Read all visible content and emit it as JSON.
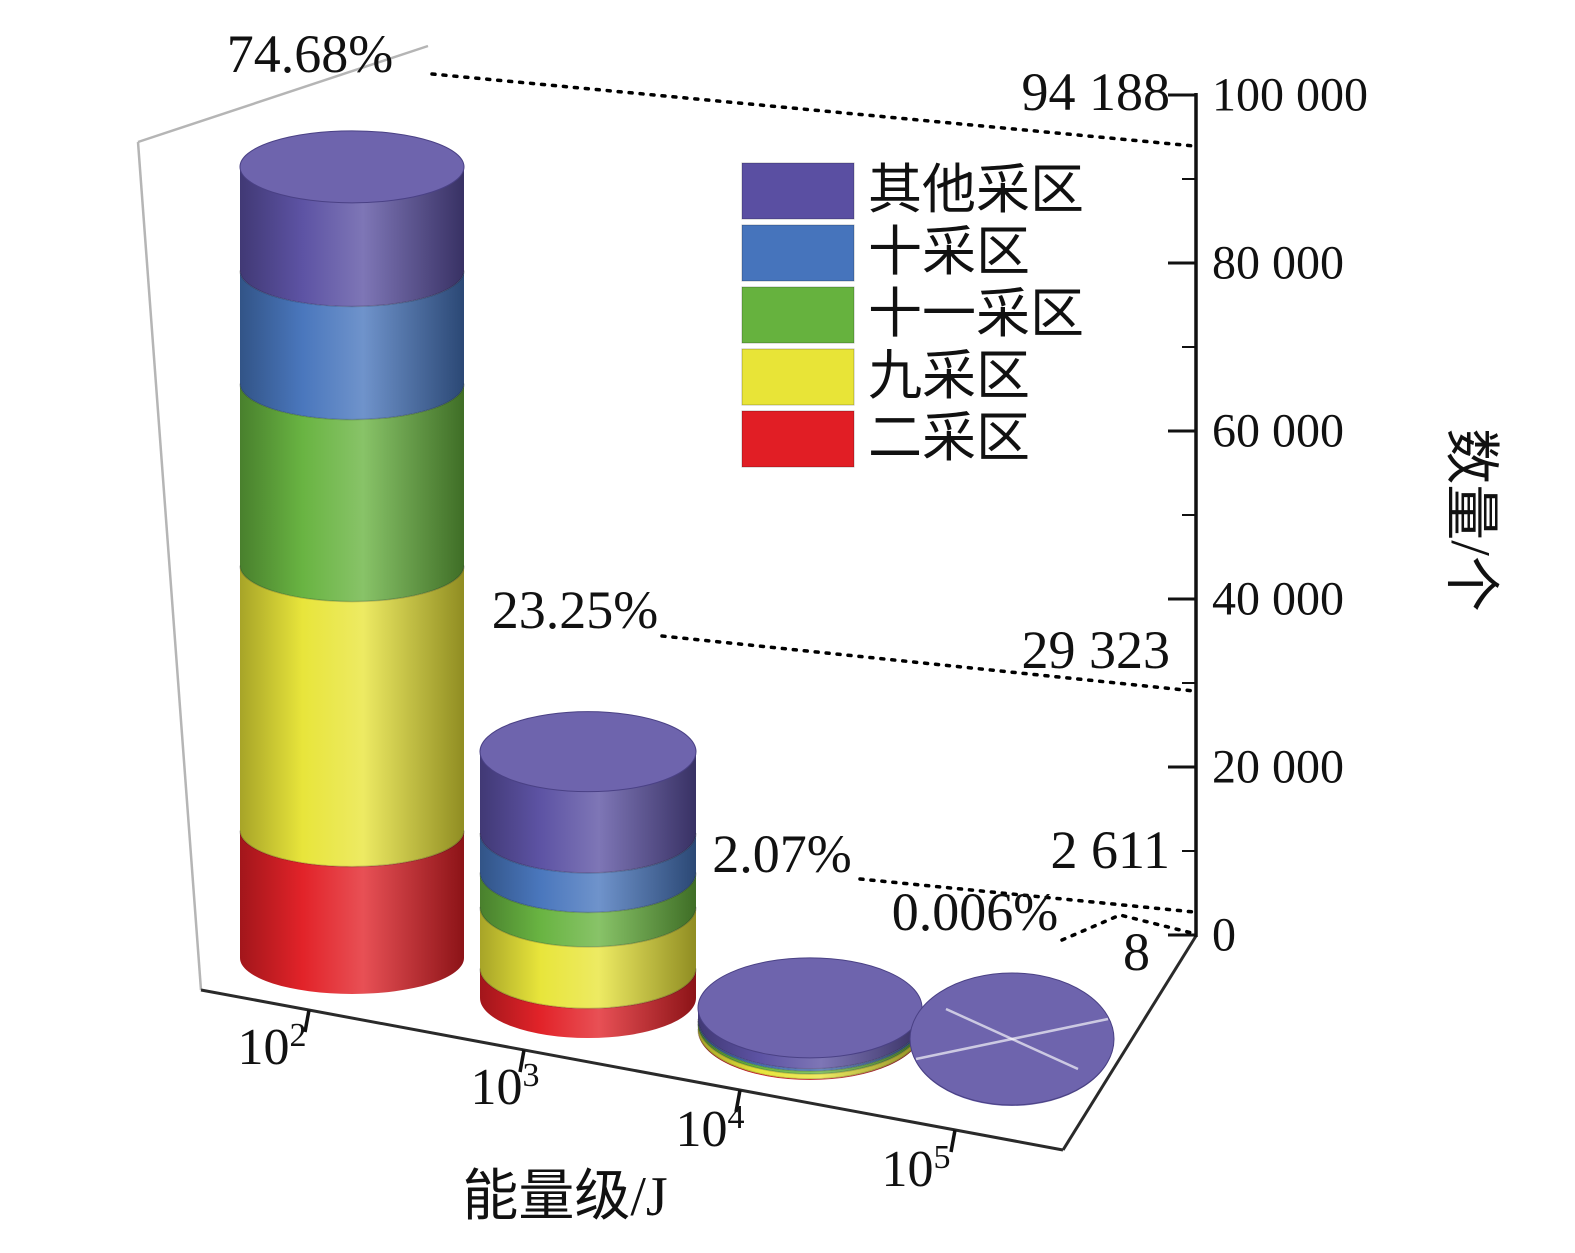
{
  "chart_data": {
    "type": "bar",
    "subtype": "3d-stacked-cylinder",
    "title": "",
    "xlabel": "能量级/J",
    "ylabel": "数量/个",
    "ylim": [
      0,
      100000
    ],
    "grid": false,
    "legend_position": "top-center",
    "categories": [
      "10^2",
      "10^3",
      "10^4",
      "10^5"
    ],
    "xticks": [
      {
        "base": "10",
        "exp": "2"
      },
      {
        "base": "10",
        "exp": "3"
      },
      {
        "base": "10",
        "exp": "4"
      },
      {
        "base": "10",
        "exp": "5"
      }
    ],
    "ytick_values": [
      0,
      20000,
      40000,
      60000,
      80000,
      100000
    ],
    "ytick_labels": [
      "0",
      "20 000",
      "40 000",
      "60 000",
      "80 000",
      "100 000"
    ],
    "totals": [
      94188,
      29323,
      2611,
      8
    ],
    "total_labels": [
      "94 188",
      "29 323",
      "2 611",
      "8"
    ],
    "percent_labels": [
      "74.68%",
      "23.25%",
      "2.07%",
      "0.006%"
    ],
    "stack_order": "bottom-to-top",
    "series": [
      {
        "name": "二采区",
        "color": "#e11e25",
        "values": [
          15164,
          3516,
          100,
          0
        ]
      },
      {
        "name": "九采区",
        "color": "#e8e437",
        "values": [
          31553,
          7330,
          600,
          0
        ]
      },
      {
        "name": "十一采区",
        "color": "#66b23e",
        "values": [
          21663,
          4100,
          350,
          0
        ]
      },
      {
        "name": "十采区",
        "color": "#4674bc",
        "values": [
          13469,
          4700,
          250,
          0
        ]
      },
      {
        "name": "其他采区",
        "color": "#5a4fa2",
        "values": [
          12339,
          9677,
          1311,
          8
        ]
      }
    ],
    "legend": [
      {
        "label": "其他采区",
        "color": "#5a4fa2"
      },
      {
        "label": "十采区",
        "color": "#4674bc"
      },
      {
        "label": "十一采区",
        "color": "#66b23e"
      },
      {
        "label": "九采区",
        "color": "#e8e437"
      },
      {
        "label": "二采区",
        "color": "#e11e25"
      }
    ]
  }
}
